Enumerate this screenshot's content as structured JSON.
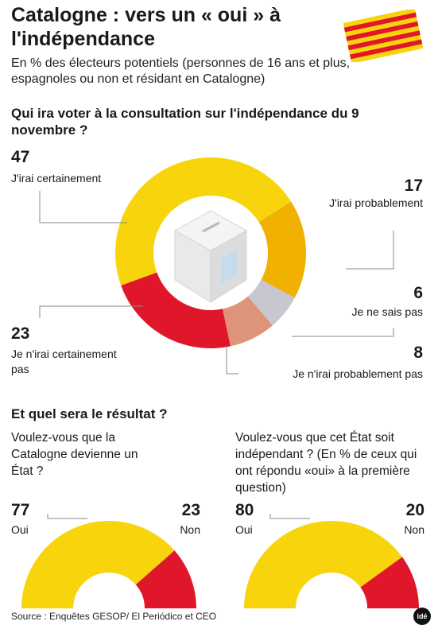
{
  "title": "Catalogne : vers un « oui » à l'indépendance",
  "subtitle": "En % des électeurs potentiels (personnes de 16 ans et plus, espagnoles ou non et résidant en Catalogne)",
  "question1": "Qui ira voter à la consultation sur l'indépendance du 9 novembre ?",
  "question2": "Et quel sera le résultat ?",
  "colors": {
    "yellow": "#f8d40c",
    "orange": "#f0b100",
    "grey": "#c7c7cf",
    "salmon": "#dd9478",
    "red": "#e0172b",
    "line": "#888888"
  },
  "icons": [
    "ballot-box-icon",
    "catalan-flag-icon",
    "ide-logo-icon"
  ],
  "chart_data": [
    {
      "type": "pie",
      "title": "Qui ira voter à la consultation sur l'indépendance du 9 novembre ?",
      "categories": [
        "J'irai certainement",
        "J'irai probablement",
        "Je ne sais pas",
        "Je n'irai probablement pas",
        "Je n'irai certainement pas"
      ],
      "values": [
        47,
        17,
        6,
        8,
        23
      ],
      "value_labels": [
        "47",
        "17",
        "6",
        "8",
        "23"
      ],
      "colors": [
        "#f8d40c",
        "#f0b100",
        "#c7c7cf",
        "#dd9478",
        "#e0172b"
      ]
    },
    {
      "type": "pie",
      "title": "Voulez-vous que la Catalogne devienne un État ?",
      "categories": [
        "Oui",
        "Non"
      ],
      "values": [
        77,
        23
      ],
      "value_labels": [
        "77",
        "23"
      ],
      "colors": [
        "#f8d40c",
        "#e0172b"
      ]
    },
    {
      "type": "pie",
      "title": "Voulez-vous que cet État soit indépendant ? (En % de ceux qui ont répondu «oui» à la première question)",
      "categories": [
        "Oui",
        "Non"
      ],
      "values": [
        80,
        20
      ],
      "value_labels": [
        "80",
        "20"
      ],
      "colors": [
        "#f8d40c",
        "#e0172b"
      ]
    }
  ],
  "source": "Source : Enquêtes GESOP/ El Periódico et CEO",
  "logo_text": "idé"
}
